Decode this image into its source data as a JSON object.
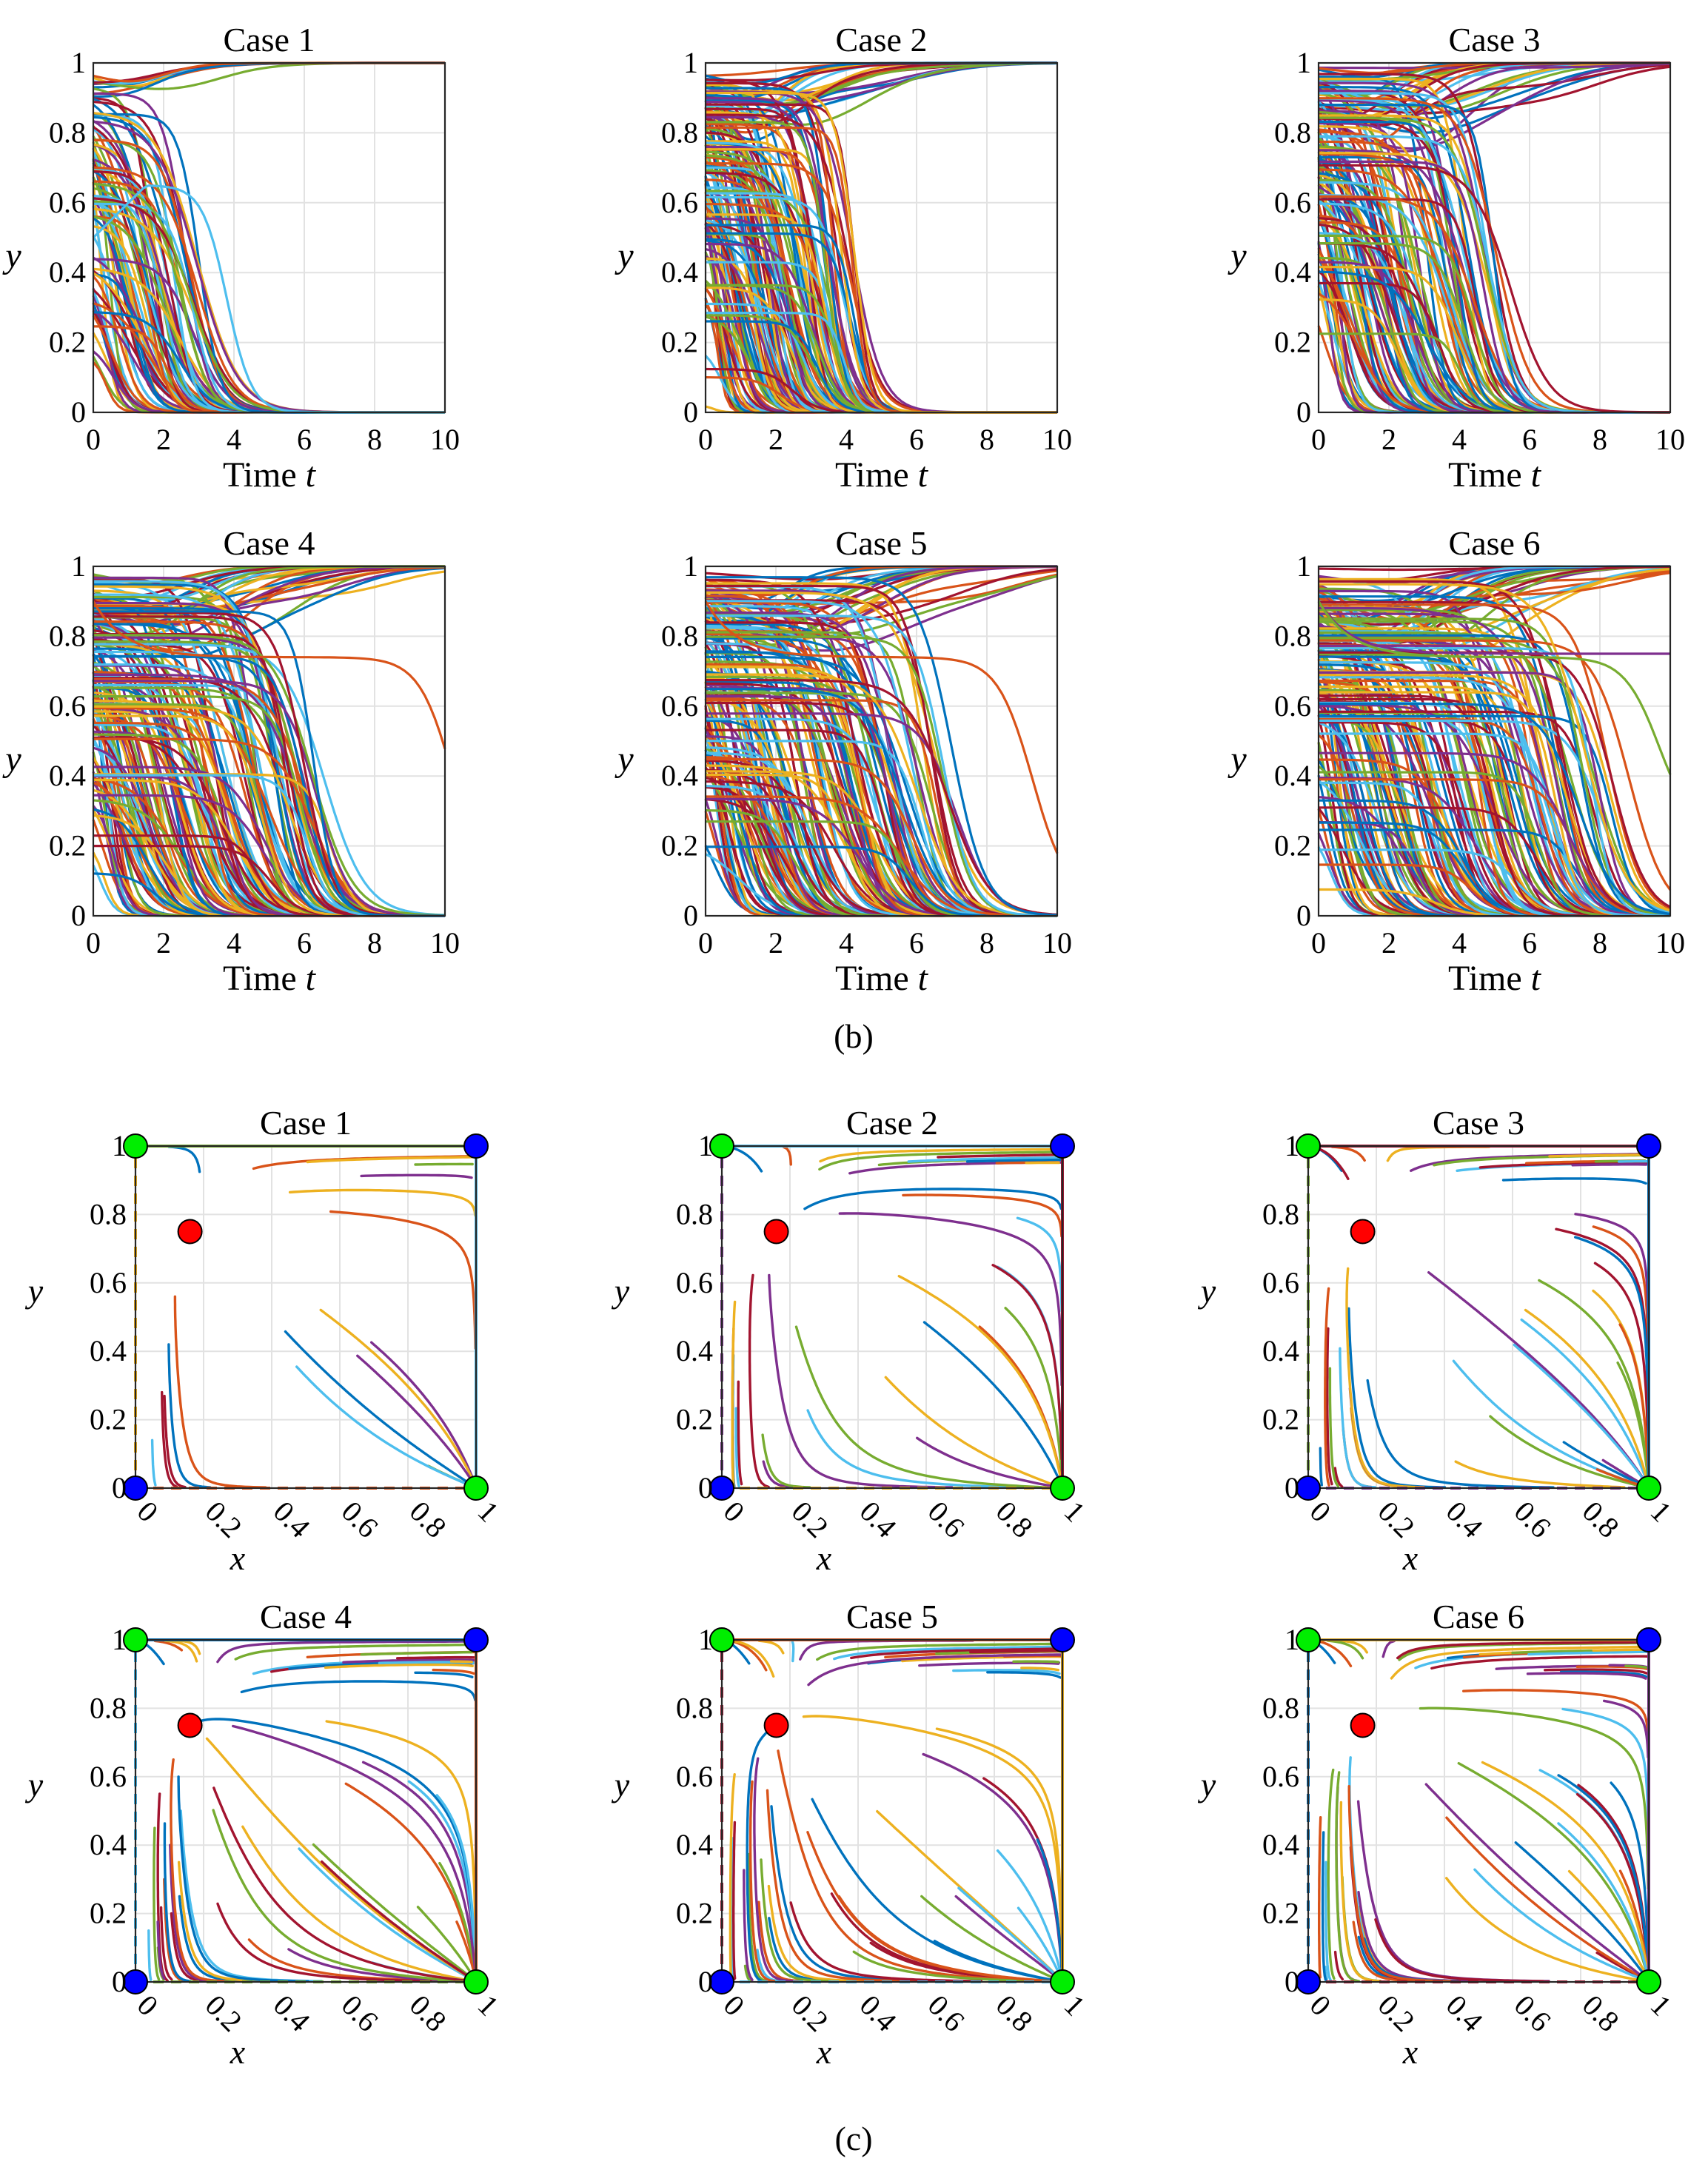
{
  "figure_labels": {
    "b": "(b)",
    "c": "(c)"
  },
  "chart_data": [
    {
      "group": "b",
      "type": "line",
      "title": "Case 1",
      "xlabel": "Time",
      "xlabel_var": "t",
      "ylabel": "y",
      "xlim": [
        0,
        10
      ],
      "ylim": [
        0,
        1
      ],
      "xticks": [
        "0",
        "2",
        "4",
        "6",
        "8",
        "10"
      ],
      "yticks": [
        "0",
        "0.2",
        "0.4",
        "0.6",
        "0.8",
        "1"
      ],
      "grid": true,
      "n_series": 90,
      "series_groups": [
        {
          "name": "converge-to-1",
          "count": 9,
          "y0": [
            0.9,
            1.0
          ],
          "y_end": 1,
          "t_dip": 2.2,
          "dip_depth": 0.12,
          "t_rise": [
            1.5,
            5
          ]
        },
        {
          "name": "decay-to-0",
          "count": 80,
          "y0": [
            0.0,
            0.92
          ],
          "y_end": 0,
          "t_half": [
            0.2,
            3.0
          ],
          "width": [
            0.25,
            0.6
          ]
        },
        {
          "name": "hump-then-decay",
          "count": 1,
          "y0": 0.5,
          "y_peak": 0.65,
          "t_peak": 1.5,
          "t_half": 3.8,
          "y_end": 0
        }
      ]
    },
    {
      "group": "b",
      "type": "line",
      "title": "Case 2",
      "xlabel": "Time",
      "xlabel_var": "t",
      "ylabel": "y",
      "xlim": [
        0,
        10
      ],
      "ylim": [
        0,
        1
      ],
      "xticks": [
        "0",
        "2",
        "4",
        "6",
        "8",
        "10"
      ],
      "yticks": [
        "0",
        "0.2",
        "0.4",
        "0.6",
        "0.8",
        "1"
      ],
      "grid": true,
      "n_series": 150,
      "series_groups": [
        {
          "name": "converge-to-1",
          "count": 22,
          "y0": [
            0.88,
            1.0
          ],
          "y_end": 1,
          "t_dip": 2.0,
          "dip_depth": 0.15,
          "t_rise": [
            1.5,
            6.5
          ]
        },
        {
          "name": "decay-to-0",
          "count": 128,
          "y0": [
            0.0,
            0.97
          ],
          "y_end": 0,
          "t_half": [
            0.2,
            4.2
          ],
          "width": [
            0.2,
            0.45
          ]
        }
      ]
    },
    {
      "group": "b",
      "type": "line",
      "title": "Case 3",
      "xlabel": "Time",
      "xlabel_var": "t",
      "ylabel": "y",
      "xlim": [
        0,
        10
      ],
      "ylim": [
        0,
        1
      ],
      "xticks": [
        "0",
        "2",
        "4",
        "6",
        "8",
        "10"
      ],
      "yticks": [
        "0",
        "0.2",
        "0.4",
        "0.6",
        "0.8",
        "1"
      ],
      "grid": true,
      "n_series": 140,
      "series_groups": [
        {
          "name": "converge-to-1",
          "count": 28,
          "y0": [
            0.86,
            1.0
          ],
          "y_end": 1,
          "t_dip": 2.2,
          "dip_depth": 0.18,
          "t_rise": [
            1.5,
            9.5
          ]
        },
        {
          "name": "decay-to-0",
          "count": 112,
          "y0": [
            0.0,
            0.97
          ],
          "y_end": 0,
          "t_half": [
            0.2,
            5.0
          ],
          "width": [
            0.25,
            0.55
          ]
        }
      ]
    },
    {
      "group": "b",
      "type": "line",
      "title": "Case 4",
      "xlabel": "Time",
      "xlabel_var": "t",
      "ylabel": "y",
      "xlim": [
        0,
        10
      ],
      "ylim": [
        0,
        1
      ],
      "xticks": [
        "0",
        "2",
        "4",
        "6",
        "8",
        "10"
      ],
      "yticks": [
        "0",
        "0.2",
        "0.4",
        "0.6",
        "0.8",
        "1"
      ],
      "grid": true,
      "n_series": 170,
      "series_groups": [
        {
          "name": "converge-to-1",
          "count": 26,
          "y0": [
            0.86,
            1.0
          ],
          "y_end": 1,
          "t_dip": 2.5,
          "dip_depth": 0.15,
          "t_rise": [
            2,
            9
          ]
        },
        {
          "name": "decay-to-0",
          "count": 143,
          "y0": [
            0.0,
            0.97
          ],
          "y_end": 0,
          "t_half": [
            0.2,
            6.5
          ],
          "width": [
            0.3,
            0.6
          ]
        },
        {
          "name": "slow-decay",
          "count": 1,
          "y0": 0.9,
          "y_plateau": 0.74,
          "t_half": 10.3,
          "y_end": 0
        }
      ]
    },
    {
      "group": "b",
      "type": "line",
      "title": "Case 5",
      "xlabel": "Time",
      "xlabel_var": "t",
      "ylabel": "y",
      "xlim": [
        0,
        10
      ],
      "ylim": [
        0,
        1
      ],
      "xticks": [
        "0",
        "2",
        "4",
        "6",
        "8",
        "10"
      ],
      "yticks": [
        "0",
        "0.2",
        "0.4",
        "0.6",
        "0.8",
        "1"
      ],
      "grid": true,
      "n_series": 170,
      "series_groups": [
        {
          "name": "converge-to-1",
          "count": 26,
          "y0": [
            0.86,
            1.0
          ],
          "y_end": 1,
          "t_dip": 2.5,
          "dip_depth": 0.17,
          "t_rise": [
            2,
            9.5
          ]
        },
        {
          "name": "decay-to-0",
          "count": 143,
          "y0": [
            0.0,
            0.97
          ],
          "y_end": 0,
          "t_half": [
            0.2,
            6.8
          ],
          "width": [
            0.3,
            0.6
          ]
        },
        {
          "name": "slow-decay",
          "count": 1,
          "y0": 0.9,
          "y_plateau": 0.74,
          "t_half": 9.3,
          "y_end": 0.04
        }
      ]
    },
    {
      "group": "b",
      "type": "line",
      "title": "Case 6",
      "xlabel": "Time",
      "xlabel_var": "t",
      "ylabel": "y",
      "xlim": [
        0,
        10
      ],
      "ylim": [
        0,
        1
      ],
      "xticks": [
        "0",
        "2",
        "4",
        "6",
        "8",
        "10"
      ],
      "yticks": [
        "0",
        "0.2",
        "0.4",
        "0.6",
        "0.8",
        "1"
      ],
      "grid": true,
      "n_series": 180,
      "series_groups": [
        {
          "name": "converge-to-1",
          "count": 28,
          "y0": [
            0.86,
            1.0
          ],
          "y_end": 1,
          "t_dip": 2.5,
          "dip_depth": 0.2,
          "t_rise": [
            2,
            10
          ]
        },
        {
          "name": "decay-to-0",
          "count": 150,
          "y0": [
            0.0,
            0.97
          ],
          "y_end": 0,
          "t_half": [
            0.2,
            8.2
          ],
          "width": [
            0.3,
            0.6
          ]
        },
        {
          "name": "plateau",
          "count": 1,
          "y0": 0.9,
          "y_plateau": 0.75,
          "y_end": 0.75
        },
        {
          "name": "slow-decay",
          "count": 1,
          "y0": 0.9,
          "y_plateau": 0.74,
          "t_half": 9.7,
          "y_end": 0.22
        }
      ]
    },
    {
      "group": "c",
      "type": "phase-portrait",
      "title": "Case 1",
      "xlabel": "x",
      "ylabel": "y",
      "xlim": [
        0,
        1
      ],
      "ylim": [
        0,
        1
      ],
      "xticks": [
        "0",
        "0.2",
        "0.4",
        "0.6",
        "0.8",
        "1"
      ],
      "yticks": [
        "0",
        "0.2",
        "0.4",
        "0.6",
        "0.8",
        "1"
      ],
      "grid": true,
      "density": 11,
      "equilibria": [
        {
          "x": 0,
          "y": 0,
          "color": "#0000ff"
        },
        {
          "x": 1,
          "y": 1,
          "color": "#0000ff"
        },
        {
          "x": 0,
          "y": 1,
          "color": "#00ee00"
        },
        {
          "x": 1,
          "y": 0,
          "color": "#00ee00"
        },
        {
          "x": 0.16,
          "y": 0.75,
          "color": "#ff0000"
        }
      ]
    },
    {
      "group": "c",
      "type": "phase-portrait",
      "title": "Case 2",
      "xlabel": "x",
      "ylabel": "y",
      "xlim": [
        0,
        1
      ],
      "ylim": [
        0,
        1
      ],
      "xticks": [
        "0",
        "0.2",
        "0.4",
        "0.6",
        "0.8",
        "1"
      ],
      "yticks": [
        "0",
        "0.2",
        "0.4",
        "0.6",
        "0.8",
        "1"
      ],
      "grid": true,
      "density": 20,
      "equilibria": [
        {
          "x": 0,
          "y": 0,
          "color": "#0000ff"
        },
        {
          "x": 1,
          "y": 1,
          "color": "#0000ff"
        },
        {
          "x": 0,
          "y": 1,
          "color": "#00ee00"
        },
        {
          "x": 1,
          "y": 0,
          "color": "#00ee00"
        },
        {
          "x": 0.16,
          "y": 0.75,
          "color": "#ff0000"
        }
      ]
    },
    {
      "group": "c",
      "type": "phase-portrait",
      "title": "Case 3",
      "xlabel": "x",
      "ylabel": "y",
      "xlim": [
        0,
        1
      ],
      "ylim": [
        0,
        1
      ],
      "xticks": [
        "0",
        "0.2",
        "0.4",
        "0.6",
        "0.8",
        "1"
      ],
      "yticks": [
        "0",
        "0.2",
        "0.4",
        "0.6",
        "0.8",
        "1"
      ],
      "grid": true,
      "density": 26,
      "equilibria": [
        {
          "x": 0,
          "y": 0,
          "color": "#0000ff"
        },
        {
          "x": 1,
          "y": 1,
          "color": "#0000ff"
        },
        {
          "x": 0,
          "y": 1,
          "color": "#00ee00"
        },
        {
          "x": 1,
          "y": 0,
          "color": "#00ee00"
        },
        {
          "x": 0.16,
          "y": 0.75,
          "color": "#ff0000"
        }
      ]
    },
    {
      "group": "c",
      "type": "phase-portrait",
      "title": "Case 4",
      "xlabel": "x",
      "ylabel": "y",
      "xlim": [
        0,
        1
      ],
      "ylim": [
        0,
        1
      ],
      "xticks": [
        "0",
        "0.2",
        "0.4",
        "0.6",
        "0.8",
        "1"
      ],
      "yticks": [
        "0",
        "0.2",
        "0.4",
        "0.6",
        "0.8",
        "1"
      ],
      "grid": true,
      "density": 32,
      "equilibria": [
        {
          "x": 0,
          "y": 0,
          "color": "#0000ff"
        },
        {
          "x": 1,
          "y": 1,
          "color": "#0000ff"
        },
        {
          "x": 0,
          "y": 1,
          "color": "#00ee00"
        },
        {
          "x": 1,
          "y": 0,
          "color": "#00ee00"
        },
        {
          "x": 0.16,
          "y": 0.75,
          "color": "#ff0000"
        }
      ]
    },
    {
      "group": "c",
      "type": "phase-portrait",
      "title": "Case 5",
      "xlabel": "x",
      "ylabel": "y",
      "xlim": [
        0,
        1
      ],
      "ylim": [
        0,
        1
      ],
      "xticks": [
        "0",
        "0.2",
        "0.4",
        "0.6",
        "0.8",
        "1"
      ],
      "yticks": [
        "0",
        "0.2",
        "0.4",
        "0.6",
        "0.8",
        "1"
      ],
      "grid": true,
      "density": 34,
      "equilibria": [
        {
          "x": 0,
          "y": 0,
          "color": "#0000ff"
        },
        {
          "x": 1,
          "y": 1,
          "color": "#0000ff"
        },
        {
          "x": 0,
          "y": 1,
          "color": "#00ee00"
        },
        {
          "x": 1,
          "y": 0,
          "color": "#00ee00"
        },
        {
          "x": 0.16,
          "y": 0.75,
          "color": "#ff0000"
        }
      ]
    },
    {
      "group": "c",
      "type": "phase-portrait",
      "title": "Case 6",
      "xlabel": "x",
      "ylabel": "y",
      "xlim": [
        0,
        1
      ],
      "ylim": [
        0,
        1
      ],
      "xticks": [
        "0",
        "0.2",
        "0.4",
        "0.6",
        "0.8",
        "1"
      ],
      "yticks": [
        "0",
        "0.2",
        "0.4",
        "0.6",
        "0.8",
        "1"
      ],
      "grid": true,
      "density": 36,
      "equilibria": [
        {
          "x": 0,
          "y": 0,
          "color": "#0000ff"
        },
        {
          "x": 1,
          "y": 1,
          "color": "#0000ff"
        },
        {
          "x": 0,
          "y": 1,
          "color": "#00ee00"
        },
        {
          "x": 1,
          "y": 0,
          "color": "#00ee00"
        },
        {
          "x": 0.16,
          "y": 0.75,
          "color": "#ff0000"
        }
      ]
    }
  ],
  "palette": [
    "#0072BD",
    "#D95319",
    "#EDB120",
    "#7E2F8E",
    "#77AC30",
    "#4DBEEE",
    "#A2142F"
  ]
}
